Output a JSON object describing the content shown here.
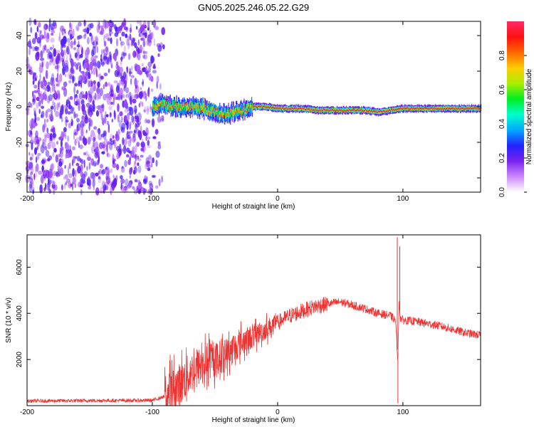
{
  "title": "GN05.2025.246.05.22.G29",
  "chart_data": [
    {
      "type": "heatmap",
      "xlabel": "Height of straight line (km)",
      "ylabel": "Frequency (Hz)",
      "xlim": [
        -200,
        162
      ],
      "ylim": [
        -48,
        48
      ],
      "x_ticks": [
        -200,
        -100,
        0,
        100
      ],
      "y_ticks": [
        -40,
        -20,
        0,
        20,
        40
      ],
      "colorbar": {
        "label": "Normalized spectral amplitude",
        "range": [
          0,
          1
        ],
        "ticks": [
          "0.0",
          "0.2",
          "0.4",
          "0.6",
          "0.8"
        ],
        "tick_values": [
          0.0,
          0.2,
          0.4,
          0.6,
          0.8
        ],
        "colormap": [
          "#ffffff",
          "#cc88ff",
          "#7a22ee",
          "#2222ff",
          "#00aaff",
          "#00ffcc",
          "#00ee22",
          "#aaee00",
          "#ffcc00",
          "#ff6600",
          "#ff1111",
          "#ff2a66"
        ]
      },
      "noise_region_x": [
        -200,
        -100
      ],
      "signal_track": {
        "x": [
          -100,
          -90,
          -80,
          -70,
          -60,
          -50,
          -40,
          -30,
          -20,
          -10,
          0,
          10,
          20,
          30,
          50,
          70,
          80,
          90,
          100,
          120,
          140,
          162
        ],
        "y": [
          0,
          1,
          0,
          0,
          -1,
          -3,
          -4,
          -2,
          0,
          0,
          -1,
          -1,
          -1,
          -2,
          -2,
          -2,
          -3,
          -2,
          -1,
          -1,
          -1,
          -1
        ]
      }
    },
    {
      "type": "line",
      "xlabel": "Height of straight line (km)",
      "ylabel": "SNR (10 * v/v)",
      "xlim": [
        -200,
        162
      ],
      "ylim": [
        0,
        7400
      ],
      "x_ticks": [
        -200,
        -100,
        0,
        100
      ],
      "y_ticks": [
        2000,
        4000,
        6000
      ],
      "color": "#ee3333",
      "envelope": {
        "x": [
          -200,
          -150,
          -100,
          -90,
          -80,
          -70,
          -60,
          -50,
          -40,
          -30,
          -20,
          -10,
          0,
          10,
          20,
          30,
          40,
          50,
          60,
          70,
          80,
          90,
          94,
          96,
          97,
          98,
          100,
          110,
          120,
          130,
          140,
          150,
          162
        ],
        "y": [
          200,
          220,
          230,
          400,
          800,
          1400,
          1800,
          2000,
          2300,
          2700,
          3000,
          3300,
          3600,
          3900,
          4100,
          4300,
          4400,
          4500,
          4350,
          4200,
          4000,
          3900,
          3700,
          2000,
          4500,
          3800,
          3700,
          3650,
          3550,
          3450,
          3300,
          3150,
          3050
        ]
      },
      "spikes": [
        {
          "x": 95.5,
          "y": 7300
        },
        {
          "x": 96,
          "y": 100
        },
        {
          "x": 97.5,
          "y": 6900
        }
      ]
    }
  ]
}
